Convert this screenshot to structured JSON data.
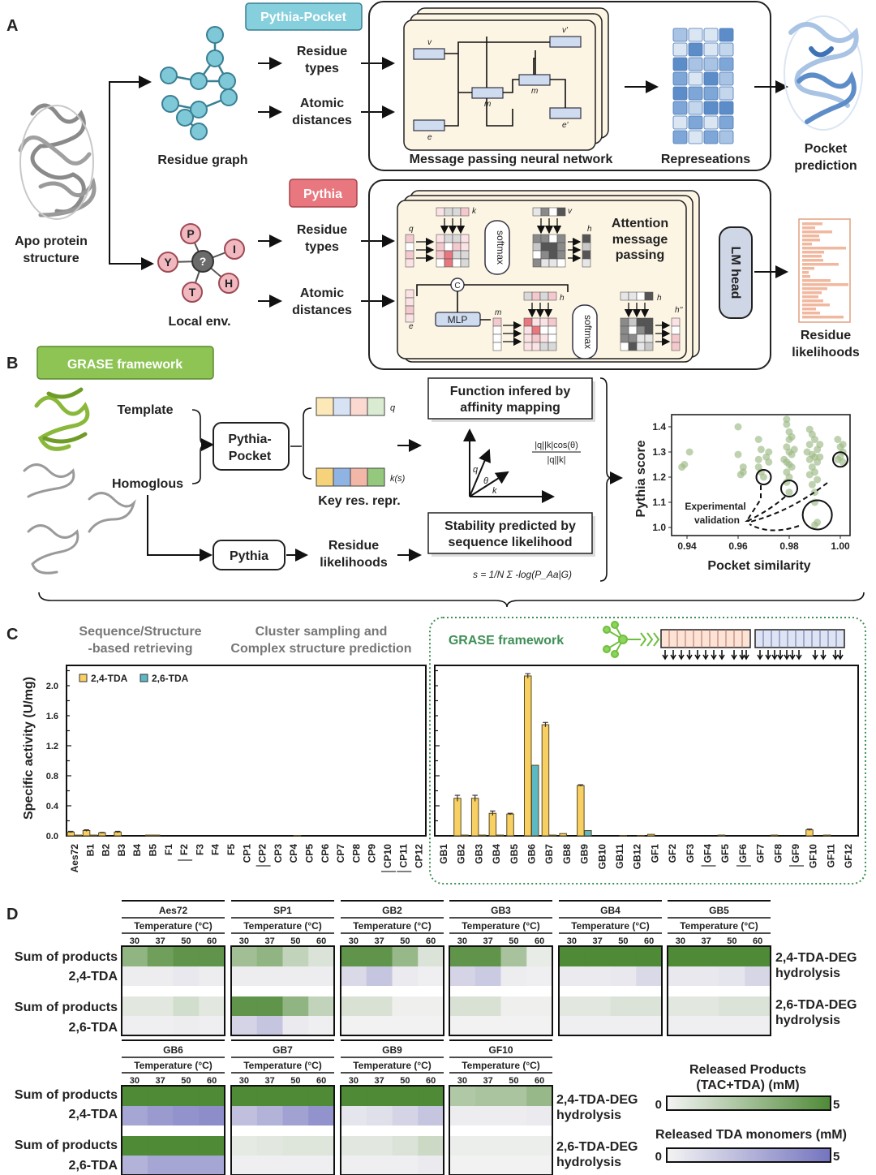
{
  "panels": {
    "a": "A",
    "b": "B",
    "c": "C",
    "d": "D"
  },
  "panel_a": {
    "apo_protein": [
      "Apo protein",
      "structure"
    ],
    "residue_graph": "Residue graph",
    "local_env": "Local env.",
    "local_env_nodes": [
      "P",
      "I",
      "H",
      "T",
      "Y",
      "?"
    ],
    "pythia_pocket_tag": "Pythia-Pocket",
    "pythia_tag": "Pythia",
    "residue_types": [
      "Residue",
      "types"
    ],
    "atomic_distances": [
      "Atomic",
      "distances"
    ],
    "mpnn_label": "Message passing neural network",
    "mpnn_symbols": {
      "v": "v",
      "v_prime": "v'",
      "m": "m",
      "e": "e",
      "e_prime": "e'"
    },
    "representations": "Represeations",
    "pocket_prediction": [
      "Pocket",
      "prediction"
    ],
    "attention_label": [
      "Attention",
      "message",
      "passing"
    ],
    "attention_symbols": {
      "q": "q",
      "k": "k",
      "v": "v",
      "h": "h",
      "e": "e",
      "m": "m",
      "h2": "h''",
      "c": "C"
    },
    "softmax": "softmax",
    "mlp": "MLP",
    "lm_head": "LM head",
    "residue_likelihoods": [
      "Residue",
      "likelihoods"
    ]
  },
  "panel_b": {
    "grase_tag": "GRASE framework",
    "template": "Template",
    "homologous": "Homoglous",
    "pythia_pocket": [
      "Pythia-",
      "Pocket"
    ],
    "pythia": "Pythia",
    "q_label": "q",
    "k_label": "k(s)",
    "key_res_repr": "Key res. repr.",
    "residue_likelihoods": [
      "Residue",
      "likelihoods"
    ],
    "function_box": [
      "Function infered by",
      "affinity mapping"
    ],
    "stability_box": [
      "Stability predicted by",
      "sequence likelihood"
    ],
    "cos_formula": {
      "num": "|q||k|cos(θ)",
      "den": "|q||k|"
    },
    "vector_labels": {
      "q": "q",
      "theta": "θ",
      "k": "k"
    },
    "s_formula": "s = 1/N Σ -log(P_Aa|G)",
    "experimental_validation": [
      "Experimental",
      "validation"
    ]
  },
  "chart_data": [
    {
      "type": "scatter",
      "xlabel": "Pocket similarity",
      "ylabel": "Pythia score",
      "xlim": [
        0.935,
        1.003
      ],
      "ylim": [
        0.97,
        1.45
      ],
      "xticks": [
        "0.94",
        "0.96",
        "0.98",
        "1.00"
      ],
      "yticks": [
        "1.0",
        "1.1",
        "1.2",
        "1.3",
        "1.4"
      ],
      "point_color": "#9dba86",
      "points": [
        [
          0.938,
          1.24
        ],
        [
          0.939,
          1.25
        ],
        [
          0.941,
          1.3
        ],
        [
          0.96,
          1.4
        ],
        [
          0.96,
          1.29
        ],
        [
          0.961,
          1.21
        ],
        [
          0.962,
          1.22
        ],
        [
          0.962,
          1.24
        ],
        [
          0.968,
          1.35
        ],
        [
          0.968,
          1.27
        ],
        [
          0.968,
          1.24
        ],
        [
          0.969,
          1.22
        ],
        [
          0.97,
          1.2
        ],
        [
          0.971,
          1.28
        ],
        [
          0.972,
          1.3
        ],
        [
          0.972,
          1.26
        ],
        [
          0.969,
          1.31
        ],
        [
          0.979,
          1.43
        ],
        [
          0.979,
          1.41
        ],
        [
          0.98,
          1.38
        ],
        [
          0.98,
          1.35
        ],
        [
          0.979,
          1.32
        ],
        [
          0.98,
          1.3
        ],
        [
          0.981,
          1.29
        ],
        [
          0.979,
          1.26
        ],
        [
          0.98,
          1.25
        ],
        [
          0.981,
          1.24
        ],
        [
          0.979,
          1.22
        ],
        [
          0.98,
          1.2
        ],
        [
          0.979,
          1.18
        ],
        [
          0.98,
          1.14
        ],
        [
          0.981,
          1.36
        ],
        [
          0.982,
          1.31
        ],
        [
          0.978,
          1.27
        ],
        [
          0.988,
          1.39
        ],
        [
          0.989,
          1.37
        ],
        [
          0.99,
          1.35
        ],
        [
          0.988,
          1.33
        ],
        [
          0.991,
          1.31
        ],
        [
          0.989,
          1.29
        ],
        [
          0.99,
          1.28
        ],
        [
          0.988,
          1.27
        ],
        [
          0.991,
          1.26
        ],
        [
          0.992,
          1.28
        ],
        [
          0.989,
          1.24
        ],
        [
          0.99,
          1.22
        ],
        [
          0.988,
          1.21
        ],
        [
          0.991,
          1.19
        ],
        [
          0.989,
          1.17
        ],
        [
          0.99,
          1.14
        ],
        [
          0.99,
          1.1
        ],
        [
          0.991,
          1.02
        ],
        [
          0.99,
          1.01
        ],
        [
          0.992,
          1.33
        ],
        [
          0.987,
          1.3
        ],
        [
          0.999,
          1.35
        ],
        [
          1.0,
          1.32
        ],
        [
          1.001,
          1.33
        ],
        [
          1.001,
          1.3
        ],
        [
          1.0,
          1.28
        ],
        [
          0.999,
          1.27
        ],
        [
          1.001,
          1.26
        ]
      ],
      "highlighted": [
        [
          0.97,
          1.2
        ],
        [
          0.98,
          1.155
        ],
        [
          0.991,
          1.05
        ],
        [
          1.0,
          1.27
        ]
      ]
    },
    {
      "type": "bar",
      "ylabel": "Specific activity (U/mg)",
      "ylim": [
        0,
        2.2
      ],
      "yticks": [
        "0.0",
        "0.4",
        "0.8",
        "1.2",
        "1.6",
        "2.0"
      ],
      "legend": [
        {
          "name": "2,4-TDA",
          "color": "#f7cf63"
        },
        {
          "name": "2,6-TDA",
          "color": "#5bb8c4"
        }
      ],
      "legend_placement": "top-left",
      "groups": [
        {
          "headings": [
            [
              "Sequence/Structure",
              "-based retrieving"
            ],
            [
              "Cluster sampling and",
              "Complex structure prediction"
            ]
          ],
          "categories": [
            "Aes72",
            "B1",
            "B2",
            "B3",
            "B4",
            "B5",
            "F1",
            "F2",
            "F3",
            "F4",
            "F5",
            "CP1",
            "CP2",
            "CP3",
            "CP4",
            "CP5",
            "CP6",
            "CP7",
            "CP8",
            "CP9",
            "CP10",
            "CP11",
            "CP12"
          ],
          "underlined": [
            "F2",
            "CP2",
            "CP10",
            "CP11"
          ],
          "series": [
            {
              "name": "2,4-TDA",
              "values": [
                0.05,
                0.07,
                0.04,
                0.05,
                0,
                0.01,
                0,
                0,
                0,
                0,
                0,
                0,
                0,
                0,
                0,
                0,
                0,
                0,
                0,
                0,
                0,
                0,
                0
              ],
              "errors": [
                0.01,
                0.01,
                0.005,
                0.01,
                0,
                0,
                0,
                0,
                0,
                0,
                0,
                0,
                0,
                0,
                0,
                0,
                0,
                0,
                0,
                0,
                0,
                0,
                0
              ]
            },
            {
              "name": "2,6-TDA",
              "values": [
                0.01,
                0.01,
                0,
                0,
                0,
                0.01,
                0,
                0,
                0,
                0,
                0,
                0,
                0,
                0,
                0.005,
                0,
                0,
                0,
                0,
                0,
                0,
                0,
                0
              ],
              "errors": []
            }
          ]
        },
        {
          "heading": "GRASE framework",
          "categories": [
            "GB1",
            "GB2",
            "GB3",
            "GB4",
            "GB5",
            "GB6",
            "GB7",
            "GB8",
            "GB9",
            "GB10",
            "GB11",
            "GB12",
            "GF1",
            "GF2",
            "GF3",
            "GF4",
            "GF5",
            "GF6",
            "GF7",
            "GF8",
            "GF9",
            "GF10",
            "GF11",
            "GF12"
          ],
          "underlined": [
            "GF4",
            "GF6",
            "GF9"
          ],
          "series": [
            {
              "name": "2,4-TDA",
              "values": [
                0,
                0.5,
                0.5,
                0.3,
                0.29,
                2.13,
                1.48,
                0.03,
                0.67,
                0,
                0,
                0,
                0.02,
                0,
                0,
                0,
                0.01,
                0,
                0,
                0.01,
                0,
                0.08,
                0.01,
                0
              ],
              "errors": [
                0,
                0.04,
                0.04,
                0.03,
                0.01,
                0.03,
                0.03,
                0,
                0.01,
                0,
                0,
                0,
                0,
                0,
                0,
                0,
                0,
                0,
                0,
                0,
                0,
                0.01,
                0,
                0
              ]
            },
            {
              "name": "2,6-TDA",
              "values": [
                0,
                0.01,
                0.01,
                0.01,
                0,
                0.94,
                0.01,
                0,
                0.07,
                0,
                0.005,
                0.005,
                0,
                0,
                0,
                0,
                0,
                0,
                0,
                0,
                0,
                0,
                0,
                0
              ],
              "errors": []
            }
          ]
        }
      ]
    },
    {
      "type": "heatmap",
      "axis_title": "Temperature (°C)",
      "temperatures": [
        "30",
        "37",
        "50",
        "60"
      ],
      "row_labels": [
        "Sum of products",
        "2,4-TDA",
        "Sum of products",
        "2,6-TDA"
      ],
      "group_labels": [
        [
          "2,4-TDA-DEG",
          "hydrolysis"
        ],
        [
          "2,6-TDA-DEG",
          "hydrolysis"
        ]
      ],
      "scale_min": 0,
      "scale_max": 5,
      "colorbars": [
        {
          "title": [
            "Released Products",
            "(TAC+TDA) (mM)"
          ],
          "min_label": "0",
          "max_label": "5",
          "color": "#4f8a37"
        },
        {
          "title": [
            "Released TDA monomers (mM)"
          ],
          "min_label": "0",
          "max_label": "5",
          "color": "#7474c0"
        }
      ],
      "enzymes": [
        {
          "name": "Aes72",
          "sum24": [
            3,
            4,
            4.5,
            4.5
          ],
          "tda24": [
            0.2,
            0.2,
            0.4,
            0.2
          ],
          "sum26": [
            0.5,
            0.5,
            1,
            0.5
          ],
          "tda26": [
            0.1,
            0.1,
            0.2,
            0.1
          ]
        },
        {
          "name": "SP1",
          "sum24": [
            2.5,
            3,
            1.5,
            0.7
          ],
          "tda24": [
            0.2,
            0.2,
            0.2,
            0.2
          ],
          "sum26": [
            4.5,
            4.5,
            3,
            1.5
          ],
          "tda26": [
            1.2,
            1.8,
            0.3,
            0.1
          ]
        },
        {
          "name": "GB2",
          "sum24": [
            4.5,
            4.5,
            2.8,
            0.7
          ],
          "tda24": [
            1,
            1.8,
            0.3,
            0.1
          ],
          "sum26": [
            0.8,
            0.8,
            0.1,
            0.1
          ],
          "tda26": [
            0,
            0,
            0,
            0
          ]
        },
        {
          "name": "GB3",
          "sum24": [
            4.5,
            4.5,
            2.3,
            0.3
          ],
          "tda24": [
            1.2,
            1.6,
            0.2,
            0.1
          ],
          "sum26": [
            0.8,
            0.8,
            0.1,
            0.1
          ],
          "tda26": [
            0,
            0,
            0,
            0
          ]
        },
        {
          "name": "GB4",
          "sum24": [
            5,
            5,
            5,
            5
          ],
          "tda24": [
            0.3,
            0.3,
            0.4,
            1
          ],
          "sum26": [
            0.5,
            0.5,
            0.7,
            0.7
          ],
          "tda26": [
            0.1,
            0.1,
            0.1,
            0.1
          ]
        },
        {
          "name": "GB5",
          "sum24": [
            5,
            5,
            5,
            5
          ],
          "tda24": [
            0.4,
            0.4,
            0.5,
            1.1
          ],
          "sum26": [
            0.5,
            0.5,
            0.7,
            0.7
          ],
          "tda26": [
            0.1,
            0.1,
            0.1,
            0.1
          ]
        },
        {
          "name": "GB6",
          "sum24": [
            5,
            5,
            5,
            5
          ],
          "tda24": [
            3,
            3.5,
            3.8,
            4
          ],
          "sum26": [
            5,
            5,
            5,
            5
          ],
          "tda26": [
            2.5,
            3,
            3,
            3
          ]
        },
        {
          "name": "GB7",
          "sum24": [
            5,
            5,
            5,
            5
          ],
          "tda24": [
            2,
            2.5,
            3.2,
            3.8
          ],
          "sum26": [
            0.4,
            0.5,
            0.6,
            0.6
          ],
          "tda26": [
            0.1,
            0.1,
            0.1,
            0.1
          ]
        },
        {
          "name": "GB9",
          "sum24": [
            5,
            5,
            5,
            5
          ],
          "tda24": [
            0.5,
            0.7,
            1.2,
            1.8
          ],
          "sum26": [
            0.5,
            0.5,
            0.7,
            1.2
          ],
          "tda26": [
            0.1,
            0.1,
            0.1,
            0.3
          ]
        },
        {
          "name": "GF10",
          "sum24": [
            2,
            2.2,
            2.2,
            2.8
          ],
          "tda24": [
            0.2,
            0.2,
            0.2,
            0.3
          ],
          "sum26": [
            0.2,
            0.2,
            0.2,
            0.2
          ],
          "tda26": [
            0,
            0,
            0,
            0
          ]
        }
      ]
    }
  ],
  "colors": {
    "pythia_pocket": "#86cfdd",
    "pythia": "#e8777f",
    "grase": "#8dc454",
    "card": "#fdf5e4",
    "node_teal": "#7ec8d8",
    "node_pink": "#f2b8bf"
  }
}
